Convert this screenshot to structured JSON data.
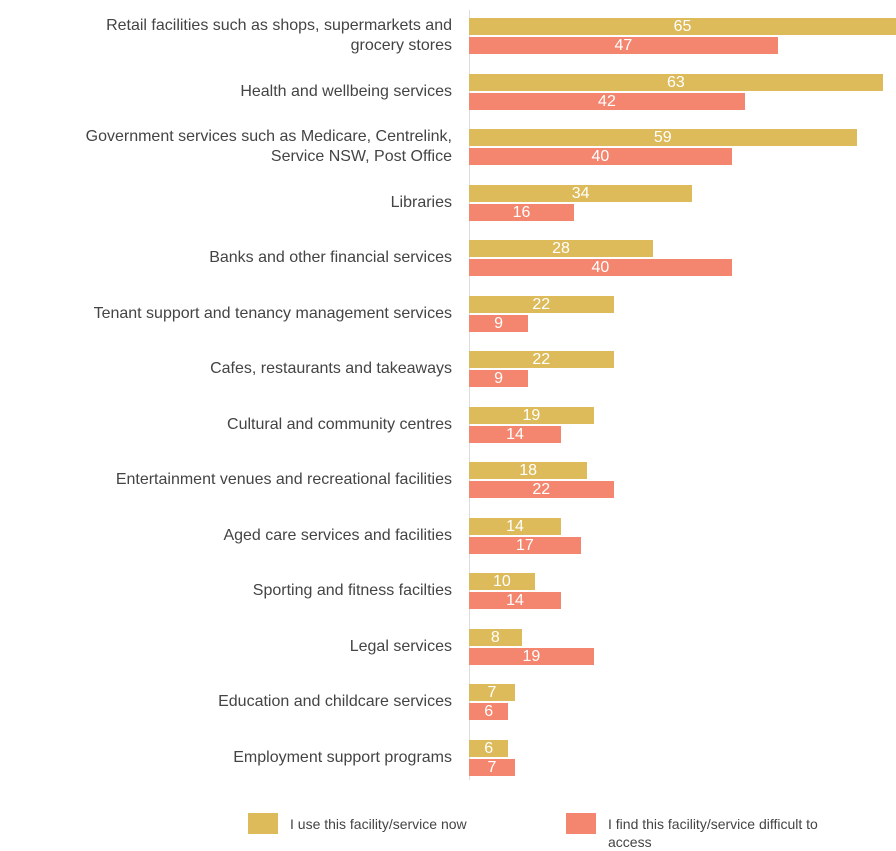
{
  "chart_data": {
    "type": "bar",
    "orientation": "horizontal",
    "categories": [
      "Retail facilities such as shops, supermarkets and\ngrocery stores",
      "Health and wellbeing services",
      "Government services such as Medicare, Centrelink,\nService NSW, Post Office",
      "Libraries",
      "Banks and other financial services",
      "Tenant support and tenancy management services",
      "Cafes, restaurants and takeaways",
      "Cultural and community centres",
      "Entertainment venues and recreational facilities",
      "Aged care services and facilities",
      "Sporting and fitness facilties",
      "Legal services",
      "Education and childcare services",
      "Employment support programs"
    ],
    "series": [
      {
        "name": "I use this facility/service now",
        "color": "#ddbb5b",
        "values": [
          65,
          63,
          59,
          34,
          28,
          22,
          22,
          19,
          18,
          14,
          10,
          8,
          7,
          6
        ]
      },
      {
        "name": "I find this facility/service difficult to\naccess",
        "color": "#f4866f",
        "values": [
          47,
          42,
          40,
          16,
          40,
          9,
          9,
          14,
          22,
          17,
          14,
          19,
          6,
          7
        ]
      }
    ],
    "xlim": [
      0,
      65
    ],
    "legend": "bottom"
  }
}
